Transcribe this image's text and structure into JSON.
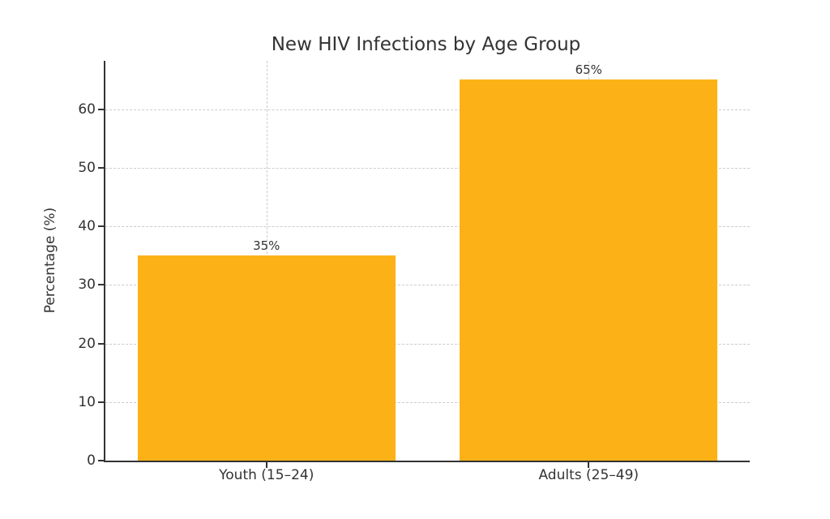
{
  "chart_data": {
    "type": "bar",
    "title": "New HIV Infections by Age Group",
    "xlabel": "",
    "ylabel": "Percentage (%)",
    "categories": [
      "Youth (15–24)",
      "Adults (25–49)"
    ],
    "values": [
      35,
      65
    ],
    "value_labels": [
      "35%",
      "65%"
    ],
    "yticks": [
      0,
      10,
      20,
      30,
      40,
      50,
      60
    ],
    "ylim": [
      0,
      68.25
    ],
    "bar_color": "#FCB216",
    "bar_width_fraction": 0.8,
    "grid": "dashed horizontal and vertical gridlines",
    "grid_color": "#cccccc",
    "axis_color": "#333333",
    "text_color": "#333333",
    "legend_position": "none",
    "background_color": "#ffffff"
  }
}
